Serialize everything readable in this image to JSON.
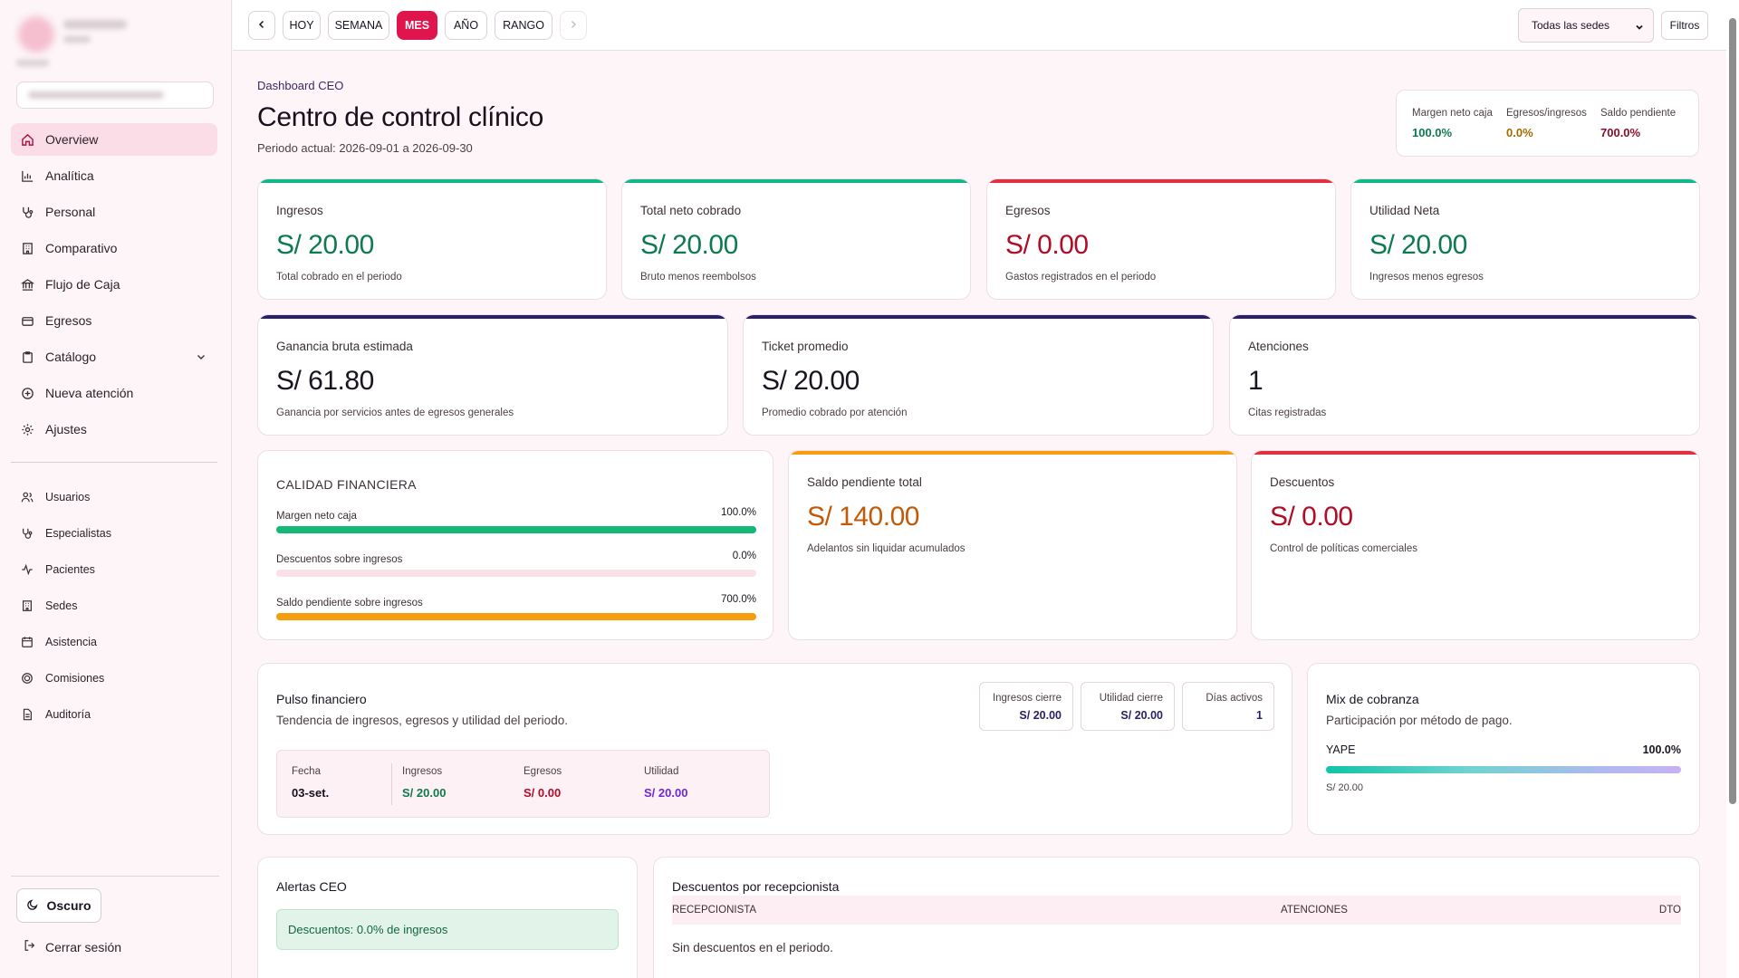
{
  "sidebar": {
    "nav": [
      {
        "label": "Overview",
        "icon": "home-icon",
        "active": true
      },
      {
        "label": "Analítica",
        "icon": "bar-chart-icon"
      },
      {
        "label": "Personal",
        "icon": "stethoscope-icon"
      },
      {
        "label": "Comparativo",
        "icon": "building-icon"
      },
      {
        "label": "Flujo de Caja",
        "icon": "bank-icon"
      },
      {
        "label": "Egresos",
        "icon": "credit-card-icon"
      },
      {
        "label": "Catálogo",
        "icon": "clipboard-icon"
      },
      {
        "label": "Nueva atención",
        "icon": "plus-circle-icon"
      },
      {
        "label": "Ajustes",
        "icon": "gear-icon"
      }
    ],
    "secondary": [
      {
        "label": "Usuarios",
        "icon": "users-icon"
      },
      {
        "label": "Especialistas",
        "icon": "stethoscope-icon"
      },
      {
        "label": "Pacientes",
        "icon": "activity-icon"
      },
      {
        "label": "Sedes",
        "icon": "building-icon"
      },
      {
        "label": "Asistencia",
        "icon": "calendar-icon"
      },
      {
        "label": "Comisiones",
        "icon": "coin-icon"
      },
      {
        "label": "Auditoría",
        "icon": "file-icon"
      }
    ],
    "theme_label": "Oscuro",
    "logout_label": "Cerrar sesión"
  },
  "topbar": {
    "periods": [
      "HOY",
      "SEMANA",
      "MES",
      "AÑO",
      "RANGO"
    ],
    "active_period": "MES",
    "sede_select": "Todas las sedes",
    "filters_label": "Filtros"
  },
  "header": {
    "eyebrow": "Dashboard CEO",
    "title": "Centro de control clínico",
    "period": "Periodo actual: 2026-09-01 a 2026-09-30"
  },
  "mini_kpis": [
    {
      "label": "Margen neto caja",
      "value": "100.0%",
      "color": "#0d7a4f"
    },
    {
      "label": "Egresos/ingresos",
      "value": "0.0%",
      "color": "#a26a00"
    },
    {
      "label": "Saldo pendiente",
      "value": "700.0%",
      "color": "#8a0f2a"
    }
  ],
  "cards_row1": [
    {
      "label": "Ingresos",
      "value": "S/ 20.00",
      "desc": "Total cobrado en el periodo",
      "accent": "#12b886",
      "color": "#0d7a4f"
    },
    {
      "label": "Total neto cobrado",
      "value": "S/ 20.00",
      "desc": "Bruto menos reembolsos",
      "accent": "#12b886",
      "color": "#0d7a4f"
    },
    {
      "label": "Egresos",
      "value": "S/ 0.00",
      "desc": "Gastos registrados en el periodo",
      "accent": "#e03140",
      "color": "#b00d26"
    },
    {
      "label": "Utilidad Neta",
      "value": "S/ 20.00",
      "desc": "Ingresos menos egresos",
      "accent": "#12b886",
      "color": "#0d7a4f"
    }
  ],
  "cards_row2": [
    {
      "label": "Ganancia bruta estimada",
      "value": "S/ 61.80",
      "desc": "Ganancia por servicios antes de egresos generales",
      "accent": "#2b1f62",
      "color": "#17111c"
    },
    {
      "label": "Ticket promedio",
      "value": "S/ 20.00",
      "desc": "Promedio cobrado por atención",
      "accent": "#2b1f62",
      "color": "#17111c"
    },
    {
      "label": "Atenciones",
      "value": "1",
      "desc": "Citas registradas",
      "accent": "#2b1f62",
      "color": "#17111c"
    }
  ],
  "quality": {
    "title": "CALIDAD FINANCIERA",
    "rows": [
      {
        "label": "Margen neto caja",
        "value": "100.0%",
        "fill": 1.0,
        "color": "#14b877"
      },
      {
        "label": "Descuentos sobre ingresos",
        "value": "0.0%",
        "fill": 0.0,
        "color": "#14b877"
      },
      {
        "label": "Saldo pendiente sobre ingresos",
        "value": "700.0%",
        "fill": 1.0,
        "color": "#f59d0c"
      }
    ]
  },
  "saldo": {
    "label": "Saldo pendiente total",
    "value": "S/ 140.00",
    "desc": "Adelantos sin liquidar acumulados",
    "accent": "#f59d0c",
    "color": "#c25a07"
  },
  "descuentos": {
    "label": "Descuentos",
    "value": "S/ 0.00",
    "desc": "Control de políticas comerciales",
    "accent": "#e03140",
    "color": "#b00d26"
  },
  "pulso": {
    "title": "Pulso financiero",
    "subtitle": "Tendencia de ingresos, egresos y utilidad del periodo.",
    "stats": [
      {
        "label": "Ingresos cierre",
        "value": "S/ 20.00"
      },
      {
        "label": "Utilidad cierre",
        "value": "S/ 20.00"
      },
      {
        "label": "Días activos",
        "value": "1"
      }
    ],
    "table": {
      "headers": [
        "Fecha",
        "Ingresos",
        "Egresos",
        "Utilidad"
      ],
      "row": [
        "03-set.",
        "S/ 20.00",
        "S/ 0.00",
        "S/ 20.00"
      ],
      "colors": [
        "#17111c",
        "#0d7a4f",
        "#b00d26",
        "#6d28d9"
      ]
    }
  },
  "mix": {
    "title": "Mix de cobranza",
    "subtitle": "Participación por método de pago.",
    "method": "YAPE",
    "percent": "100.0%",
    "amount": "S/ 20.00"
  },
  "alertas": {
    "title": "Alertas CEO",
    "message": "Descuentos: 0.0% de ingresos"
  },
  "desc_recep": {
    "title": "Descuentos por recepcionista",
    "headers": [
      "RECEPCIONISTA",
      "ATENCIONES",
      "DTO"
    ],
    "empty": "Sin descuentos en el periodo."
  }
}
